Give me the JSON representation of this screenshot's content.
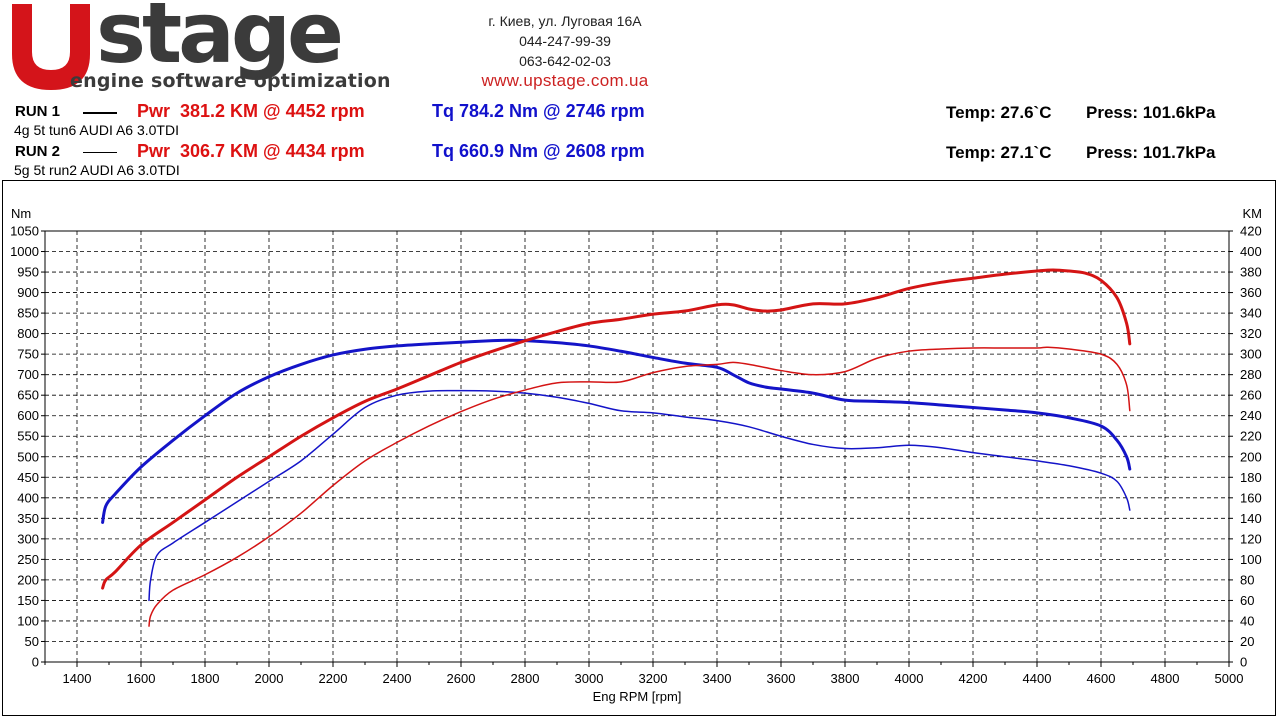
{
  "header": {
    "logo_text": "stage",
    "logo_subtitle": "engine software optimization",
    "address": "г. Киев, ул. Луговая 16А",
    "phone1": "044-247-99-39",
    "phone2": "063-642-02-03",
    "website": "www.upstage.com.ua",
    "brand_red": "#d4141a",
    "brand_gray": "#3b3b3b"
  },
  "runs": [
    {
      "label": "RUN 1",
      "description": "4g 5t tun6 AUDI A6 3.0TDI",
      "power_text": "Pwr  381.2 KM @ 4452 rpm",
      "torque_text": "Tq 784.2 Nm @ 2746 rpm",
      "temp_text": "Temp: 27.6`C",
      "press_text": "Press: 101.6kPa"
    },
    {
      "label": "RUN 2",
      "description": "5g 5t run2 AUDI A6 3.0TDI",
      "power_text": "Pwr  306.7 KM @ 4434 rpm",
      "torque_text": "Tq 660.9 Nm @ 2608 rpm",
      "temp_text": "Temp: 27.1`C",
      "press_text": "Press: 101.7kPa"
    }
  ],
  "chart_data": {
    "type": "line",
    "xlabel": "Eng RPM [rpm]",
    "ylabel_left": "Nm",
    "ylabel_right": "KM",
    "xlim": [
      1300,
      5000
    ],
    "ylim_left": [
      0,
      1050
    ],
    "ylim_right": [
      0,
      420
    ],
    "x_ticks": [
      1400,
      1600,
      1800,
      2000,
      2200,
      2400,
      2600,
      2800,
      3000,
      3200,
      3400,
      3600,
      3800,
      4000,
      4200,
      4400,
      4600,
      4800,
      5000
    ],
    "y_ticks_left": [
      0,
      50,
      100,
      150,
      200,
      250,
      300,
      350,
      400,
      450,
      500,
      550,
      600,
      650,
      700,
      750,
      800,
      850,
      900,
      950,
      1000,
      1050
    ],
    "y_ticks_right": [
      0,
      20,
      40,
      60,
      80,
      100,
      120,
      140,
      160,
      180,
      200,
      220,
      240,
      260,
      280,
      300,
      320,
      340,
      360,
      380,
      400,
      420
    ],
    "grid": true,
    "series": [
      {
        "run": "RUN 1",
        "quantity": "torque",
        "axis": "left",
        "color": "#1414c8",
        "width": 3,
        "x": [
          1480,
          1490,
          1520,
          1600,
          1700,
          1800,
          1900,
          2000,
          2100,
          2200,
          2300,
          2400,
          2500,
          2600,
          2700,
          2750,
          2800,
          2900,
          3000,
          3100,
          3200,
          3300,
          3400,
          3450,
          3500,
          3550,
          3600,
          3700,
          3800,
          3900,
          4000,
          4100,
          4200,
          4300,
          4400,
          4500,
          4600,
          4650,
          4680,
          4690
        ],
        "y": [
          340,
          380,
          410,
          475,
          540,
          600,
          655,
          695,
          725,
          748,
          762,
          770,
          775,
          779,
          783,
          784,
          783,
          778,
          770,
          757,
          742,
          728,
          718,
          700,
          680,
          670,
          665,
          655,
          638,
          635,
          632,
          626,
          620,
          614,
          607,
          595,
          575,
          540,
          500,
          470
        ]
      },
      {
        "run": "RUN 1",
        "quantity": "power",
        "axis": "right",
        "color": "#d41414",
        "width": 3,
        "x": [
          1480,
          1490,
          1520,
          1600,
          1700,
          1800,
          1900,
          2000,
          2100,
          2200,
          2300,
          2400,
          2500,
          2600,
          2700,
          2800,
          2900,
          3000,
          3100,
          3200,
          3300,
          3400,
          3450,
          3500,
          3550,
          3600,
          3700,
          3800,
          3900,
          4000,
          4100,
          4200,
          4300,
          4400,
          4450,
          4500,
          4550,
          4600,
          4650,
          4680,
          4690
        ],
        "y": [
          72,
          80,
          88,
          114,
          136,
          158,
          180,
          200,
          220,
          238,
          254,
          266,
          279,
          292,
          303,
          313,
          322,
          330,
          334,
          339,
          342,
          348,
          348,
          344,
          342,
          343,
          349,
          349,
          355,
          364,
          370,
          374,
          378,
          381,
          382,
          381,
          379,
          372,
          355,
          330,
          310
        ]
      },
      {
        "run": "RUN 2",
        "quantity": "torque",
        "axis": "left",
        "color": "#1414c8",
        "width": 1.5,
        "x": [
          1625,
          1630,
          1650,
          1700,
          1800,
          1900,
          2000,
          2100,
          2200,
          2300,
          2400,
          2500,
          2600,
          2700,
          2800,
          2900,
          3000,
          3100,
          3200,
          3300,
          3400,
          3500,
          3600,
          3700,
          3800,
          3900,
          4000,
          4100,
          4200,
          4300,
          4400,
          4500,
          4600,
          4650,
          4680,
          4690
        ],
        "y": [
          150,
          200,
          260,
          290,
          340,
          390,
          440,
          490,
          555,
          620,
          650,
          660,
          661,
          660,
          655,
          645,
          630,
          612,
          607,
          597,
          588,
          573,
          550,
          530,
          520,
          522,
          528,
          522,
          510,
          500,
          490,
          478,
          460,
          440,
          400,
          370
        ]
      },
      {
        "run": "RUN 2",
        "quantity": "power",
        "axis": "right",
        "color": "#d41414",
        "width": 1.5,
        "x": [
          1625,
          1630,
          1650,
          1700,
          1800,
          1900,
          2000,
          2100,
          2200,
          2300,
          2400,
          2500,
          2600,
          2700,
          2800,
          2900,
          3000,
          3100,
          3200,
          3300,
          3400,
          3450,
          3500,
          3550,
          3600,
          3700,
          3800,
          3900,
          4000,
          4100,
          4200,
          4300,
          4400,
          4434,
          4500,
          4600,
          4650,
          4680,
          4690
        ],
        "y": [
          35,
          45,
          56,
          70,
          85,
          102,
          122,
          145,
          172,
          196,
          214,
          230,
          244,
          256,
          265,
          272,
          273,
          273,
          282,
          288,
          290,
          292,
          290,
          287,
          284,
          280,
          283,
          296,
          303,
          305,
          306,
          306,
          306,
          306.7,
          305,
          300,
          290,
          270,
          245
        ]
      }
    ]
  }
}
